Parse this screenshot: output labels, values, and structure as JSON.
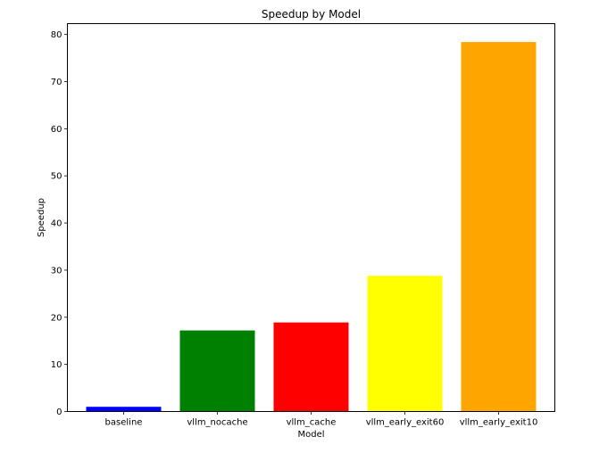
{
  "chart_data": {
    "type": "bar",
    "title": "Speedup by Model",
    "xlabel": "Model",
    "ylabel": "Speedup",
    "categories": [
      "baseline",
      "vllm_nocache",
      "vllm_cache",
      "vllm_early_exit60",
      "vllm_early_exit10"
    ],
    "values": [
      1.0,
      17.2,
      18.9,
      28.8,
      78.4
    ],
    "colors": [
      "#0000ff",
      "#008000",
      "#ff0000",
      "#ffff00",
      "#ffa500"
    ],
    "ylim": [
      0,
      82.3
    ],
    "yticks": [
      0,
      10,
      20,
      30,
      40,
      50,
      60,
      70,
      80
    ],
    "grid": false,
    "legend": "none"
  }
}
